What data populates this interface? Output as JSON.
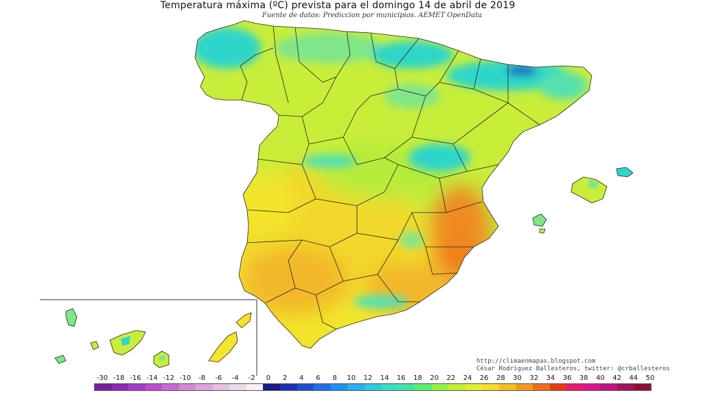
{
  "title": "Temperatura máxima (ºC) prevista para el domingo 14 de abril de 2019",
  "subtitle": "Fuente de datos: Prediccion por municipios. AEMET OpenData",
  "credits": {
    "site": "http://climaenmapas.blogspot.com",
    "author": "César Rodríguez Ballesteros, twitter: @crballesteros"
  },
  "legend": {
    "labels": [
      "-30",
      "-18",
      "-16",
      "-14",
      "-12",
      "-10",
      "-8",
      "-6",
      "-4",
      "-2",
      "0",
      "2",
      "4",
      "6",
      "8",
      "10",
      "12",
      "14",
      "16",
      "18",
      "20",
      "22",
      "24",
      "26",
      "28",
      "30",
      "32",
      "34",
      "36",
      "38",
      "40",
      "42",
      "44",
      "50"
    ],
    "colors": [
      "#7a1fa2",
      "#8e2ab4",
      "#a63ac4",
      "#bb4fcf",
      "#c96ad3",
      "#d389d6",
      "#dba7d8",
      "#e2c2dc",
      "#eadbe4",
      "#f6f2f6",
      "#1a1a8c",
      "#1f2fb2",
      "#1f4fd2",
      "#1f6ee8",
      "#2290f0",
      "#27b0f0",
      "#2ec8e0",
      "#36dcc8",
      "#40e6a4",
      "#5aef70",
      "#8ef440",
      "#bff030",
      "#e6ee2c",
      "#f6dc24",
      "#f6be1e",
      "#f29a1c",
      "#ee6e18",
      "#ea3a14",
      "#e81a6a",
      "#d8168e",
      "#c0147c",
      "#a41258",
      "#8c1034"
    ]
  },
  "map": {
    "region": "España (Península, Baleares, Canarias)",
    "variable": "Temperatura máxima",
    "unit": "ºC",
    "colors": {
      "cold_north": "#2fd6c9",
      "cool": "#7fe68a",
      "mild": "#c8ee3a",
      "warm": "#f2e52c",
      "hot": "#f2b82a",
      "very_hot": "#ee8a22",
      "mountain": "#1a4fbf",
      "border": "#222222"
    }
  }
}
